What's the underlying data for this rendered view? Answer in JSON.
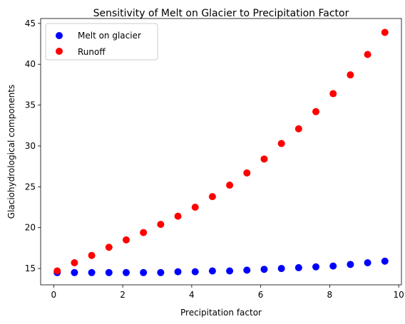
{
  "chart_data": {
    "type": "scatter",
    "title": "Sensitivity of Melt on Glacier to Precipitation Factor",
    "xlabel": "Precipitation factor",
    "ylabel": "Glaciohydrological components",
    "xlim": [
      -0.38,
      10.08
    ],
    "ylim": [
      13.0,
      45.6
    ],
    "xticks": [
      0,
      2,
      4,
      6,
      8,
      10
    ],
    "yticks": [
      15,
      20,
      25,
      30,
      35,
      40,
      45
    ],
    "legend_position": "upper-left",
    "grid": false,
    "x": [
      0.1,
      0.6,
      1.1,
      1.6,
      2.1,
      2.6,
      3.1,
      3.6,
      4.1,
      4.6,
      5.1,
      5.6,
      6.1,
      6.6,
      7.1,
      7.6,
      8.1,
      8.6,
      9.1,
      9.6
    ],
    "series": [
      {
        "name": "Melt on glacier",
        "color": "#0000ff",
        "values": [
          14.5,
          14.5,
          14.5,
          14.5,
          14.5,
          14.5,
          14.5,
          14.6,
          14.6,
          14.7,
          14.7,
          14.8,
          14.9,
          15.0,
          15.1,
          15.2,
          15.3,
          15.5,
          15.7,
          15.9
        ]
      },
      {
        "name": "Runoff",
        "color": "#ff0000",
        "values": [
          14.7,
          15.7,
          16.6,
          17.6,
          18.5,
          19.4,
          20.4,
          21.4,
          22.5,
          23.8,
          25.2,
          26.7,
          28.4,
          30.3,
          32.1,
          34.2,
          36.4,
          38.7,
          41.2,
          43.9
        ]
      }
    ]
  }
}
